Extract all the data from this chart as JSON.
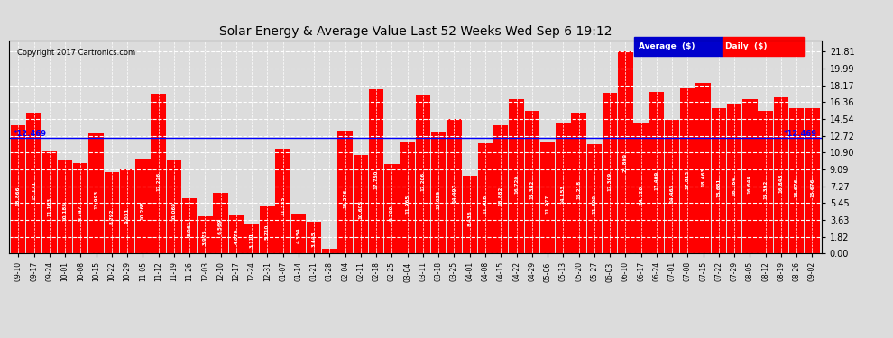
{
  "title": "Solar Energy & Average Value Last 52 Weeks Wed Sep 6 19:12",
  "copyright": "Copyright 2017 Cartronics.com",
  "bar_color": "#FF0000",
  "average_line_color": "#0000FF",
  "average_value": 12.469,
  "background_color": "#DCDCDC",
  "plot_bg_color": "#DCDCDC",
  "grid_color": "#FFFFFF",
  "yticks": [
    0.0,
    1.82,
    3.63,
    5.45,
    7.27,
    9.09,
    10.9,
    12.72,
    14.54,
    16.36,
    18.17,
    19.99,
    21.81
  ],
  "ylim": [
    0.0,
    23.0
  ],
  "legend_avg_color": "#0000CD",
  "legend_daily_color": "#FF0000",
  "categories": [
    "09-10",
    "09-17",
    "09-24",
    "10-01",
    "10-08",
    "10-15",
    "10-22",
    "10-29",
    "11-05",
    "11-12",
    "11-19",
    "11-26",
    "12-03",
    "12-10",
    "12-17",
    "12-24",
    "12-31",
    "01-07",
    "01-14",
    "01-21",
    "01-28",
    "02-04",
    "02-11",
    "02-18",
    "02-25",
    "03-04",
    "03-11",
    "03-18",
    "03-25",
    "04-01",
    "04-08",
    "04-15",
    "04-22",
    "04-29",
    "05-06",
    "05-13",
    "05-20",
    "05-27",
    "06-03",
    "06-10",
    "06-17",
    "06-24",
    "07-01",
    "07-08",
    "07-15",
    "07-22",
    "07-29",
    "08-05",
    "08-12",
    "08-19",
    "08-26",
    "09-02"
  ],
  "values": [
    13.866,
    15.171,
    11.163,
    10.185,
    9.747,
    12.993,
    8.792,
    9.031,
    10.268,
    17.226,
    10.069,
    5.961,
    3.975,
    6.569,
    4.074,
    3.111,
    5.21,
    11.335,
    4.354,
    3.445,
    0.554,
    13.276,
    10.605,
    17.76,
    9.7,
    11.965,
    17.206,
    13.029,
    14.497,
    8.436,
    11.916,
    13.882,
    16.72,
    15.382,
    11.977,
    14.153,
    15.218,
    11.809,
    17.309,
    21.809,
    14.126,
    17.409,
    14.463,
    17.813,
    18.463,
    15.681,
    16.184,
    16.648,
    15.392,
    16.848,
    15.676,
    15.676
  ]
}
